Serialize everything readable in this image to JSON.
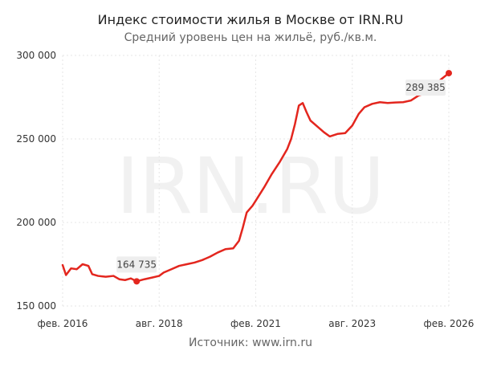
{
  "chart_data": {
    "type": "line",
    "title": "Индекс стоимости жилья в Москве от IRN.RU",
    "subtitle": "Средний уровень цен на жильё, руб./кв.м.",
    "source": "Источник: www.irn.ru",
    "watermark": "IRN.RU",
    "x_tick_labels": [
      "фев. 2016",
      "авг. 2018",
      "фев. 2021",
      "авг. 2023",
      "фев. 2026"
    ],
    "x_ticks": [
      2016.083,
      2018.583,
      2021.083,
      2023.583,
      2026.083
    ],
    "y_tick_labels": [
      "150 000",
      "200 000",
      "250 000",
      "300 000"
    ],
    "y_ticks": [
      150000,
      200000,
      250000,
      300000
    ],
    "xlim": [
      2016.083,
      2026.083
    ],
    "ylim": [
      150000,
      300000
    ],
    "grid": true,
    "line_color": "#e3261e",
    "series": [
      {
        "values": [
          [
            2016.083,
            174500
          ],
          [
            2016.17,
            168500
          ],
          [
            2016.3,
            172500
          ],
          [
            2016.45,
            172000
          ],
          [
            2016.6,
            175000
          ],
          [
            2016.75,
            174000
          ],
          [
            2016.85,
            169000
          ],
          [
            2017.0,
            168000
          ],
          [
            2017.2,
            167500
          ],
          [
            2017.4,
            168000
          ],
          [
            2017.55,
            166000
          ],
          [
            2017.7,
            165500
          ],
          [
            2017.85,
            166500
          ],
          [
            2018.0,
            164735
          ],
          [
            2018.2,
            166000
          ],
          [
            2018.4,
            167000
          ],
          [
            2018.583,
            168000
          ],
          [
            2018.7,
            170000
          ],
          [
            2018.9,
            172000
          ],
          [
            2019.1,
            174000
          ],
          [
            2019.3,
            175000
          ],
          [
            2019.5,
            176000
          ],
          [
            2019.7,
            177500
          ],
          [
            2019.9,
            179500
          ],
          [
            2020.1,
            182000
          ],
          [
            2020.3,
            184000
          ],
          [
            2020.5,
            184500
          ],
          [
            2020.65,
            189000
          ],
          [
            2020.75,
            197000
          ],
          [
            2020.85,
            206000
          ],
          [
            2021.0,
            210000
          ],
          [
            2021.083,
            213000
          ],
          [
            2021.3,
            221000
          ],
          [
            2021.5,
            229000
          ],
          [
            2021.7,
            236000
          ],
          [
            2021.9,
            244000
          ],
          [
            2022.0,
            250000
          ],
          [
            2022.1,
            259000
          ],
          [
            2022.2,
            270000
          ],
          [
            2022.3,
            271500
          ],
          [
            2022.4,
            266000
          ],
          [
            2022.5,
            261000
          ],
          [
            2022.7,
            257000
          ],
          [
            2022.85,
            254000
          ],
          [
            2023.0,
            251500
          ],
          [
            2023.2,
            253000
          ],
          [
            2023.4,
            253500
          ],
          [
            2023.583,
            258000
          ],
          [
            2023.75,
            265000
          ],
          [
            2023.9,
            269000
          ],
          [
            2024.1,
            271000
          ],
          [
            2024.3,
            272000
          ],
          [
            2024.5,
            271500
          ],
          [
            2024.7,
            271800
          ],
          [
            2024.9,
            272000
          ],
          [
            2025.1,
            273000
          ],
          [
            2025.3,
            276000
          ],
          [
            2025.5,
            277500
          ],
          [
            2025.7,
            282000
          ],
          [
            2025.9,
            286000
          ],
          [
            2026.083,
            289385
          ]
        ]
      }
    ],
    "point_labels": [
      {
        "x": 2018.0,
        "y": 164735,
        "text": "164 735",
        "position": "above"
      },
      {
        "x": 2026.083,
        "y": 289385,
        "text": "289 385",
        "position": "below-left"
      }
    ]
  }
}
